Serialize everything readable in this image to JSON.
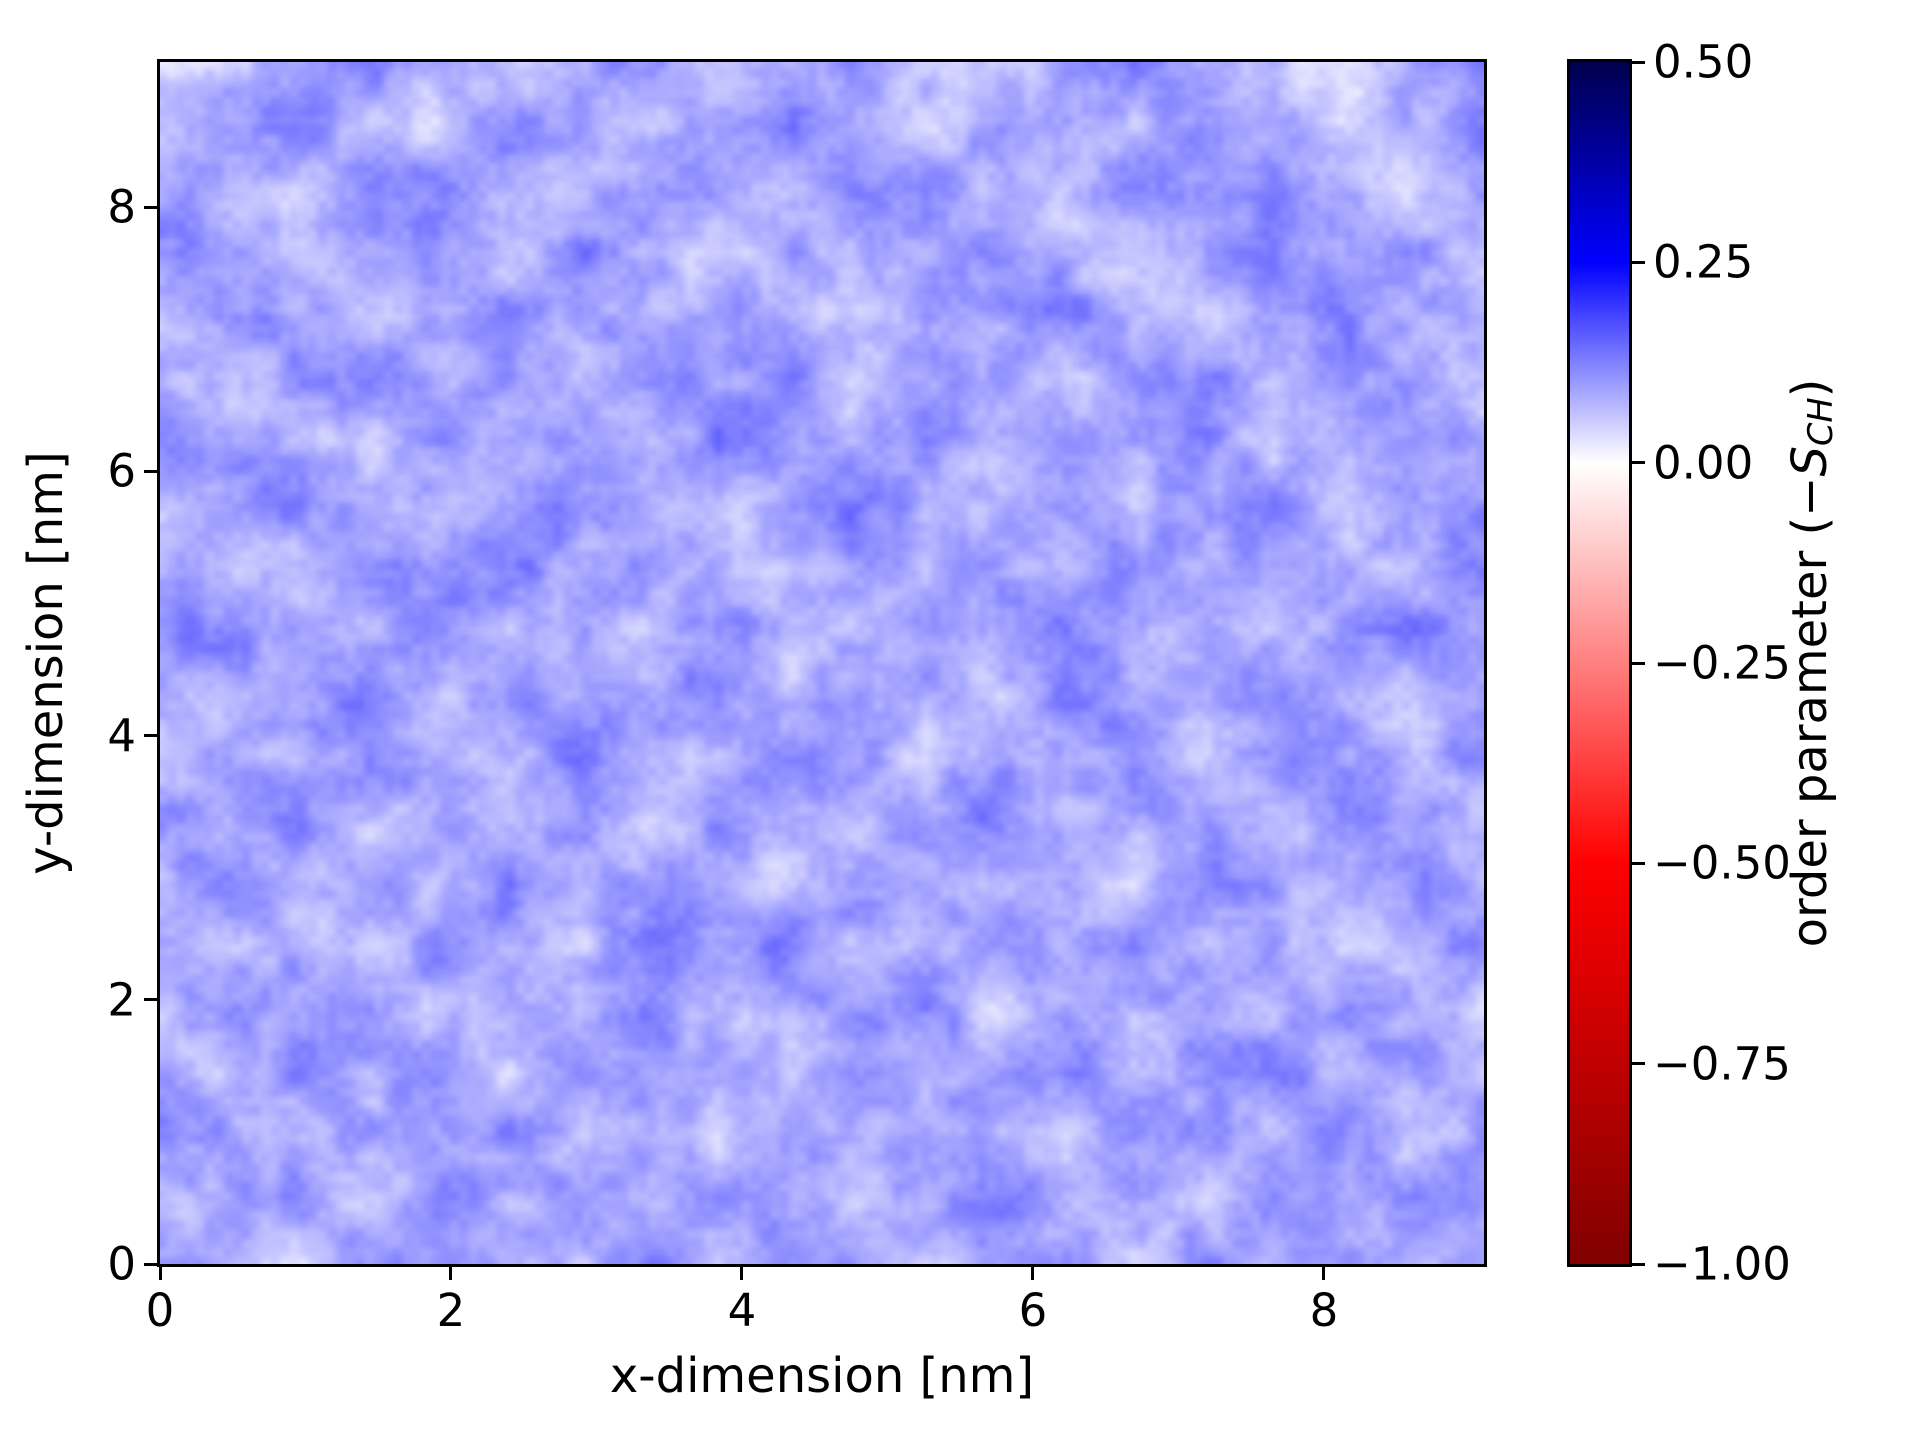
{
  "figure": {
    "background": "#ffffff",
    "title": ""
  },
  "chart_data": {
    "type": "heatmap",
    "title": "",
    "xlabel": "x-dimension [nm]",
    "ylabel": "y-dimension [nm]",
    "x_range": [
      0,
      9.1
    ],
    "y_range": [
      0,
      9.1
    ],
    "x_ticks": {
      "values": [
        0,
        2,
        4,
        6,
        8
      ],
      "labels": [
        "0",
        "2",
        "4",
        "6",
        "8"
      ]
    },
    "y_ticks": {
      "values": [
        0,
        2,
        4,
        6,
        8
      ],
      "labels": [
        "0",
        "2",
        "4",
        "6",
        "8"
      ]
    },
    "grid_lines": "off",
    "legend": "none",
    "colorbar": {
      "position": "right",
      "label_text": "order parameter (−",
      "label_var": "S",
      "label_sub": "CH",
      "label_suffix": ")",
      "vmin": -1.0,
      "vcenter": 0.0,
      "vmax": 0.5,
      "ticks": {
        "values": [
          0.5,
          0.25,
          0.0,
          -0.25,
          -0.5,
          -0.75,
          -1.0
        ],
        "labels": [
          "0.50",
          "0.25",
          "0.00",
          "−0.25",
          "−0.50",
          "−0.75",
          "−1.00"
        ]
      },
      "colormap_name": "seismic (reversed, white centered at 0.00)",
      "anchors": [
        {
          "value": 0.5,
          "rgb": [
            0,
            0,
            77
          ]
        },
        {
          "value": 0.25,
          "rgb": [
            0,
            0,
            255
          ]
        },
        {
          "value": 0.0,
          "rgb": [
            255,
            255,
            255
          ]
        },
        {
          "value": -0.5,
          "rgb": [
            255,
            0,
            0
          ]
        },
        {
          "value": -1.0,
          "rgb": [
            128,
            0,
            0
          ]
        }
      ],
      "css_gradient_stops": [
        {
          "pos_pct": 0.0,
          "color": "#00004d"
        },
        {
          "pos_pct": 16.667,
          "color": "#0000ff"
        },
        {
          "pos_pct": 33.333,
          "color": "#ffffff"
        },
        {
          "pos_pct": 66.667,
          "color": "#ff0000"
        },
        {
          "pos_pct": 100.0,
          "color": "#800000"
        }
      ]
    },
    "field": {
      "description": "Noisy, spatially-uniform order-parameter field; all values slightly positive (pale blue), no red regions. Grid below is a 20x20 estimate (row 0 = top, y=9.1 nm; col 0 = left, x=0 nm).",
      "values_min": 0.0,
      "values_max": 0.16,
      "values_mean": 0.085,
      "grid_rows": 20,
      "grid_cols": 20,
      "grid": [
        [
          0.032,
          0.061,
          0.095,
          0.118,
          0.076,
          0.052,
          0.089,
          0.107,
          0.063,
          0.084,
          0.112,
          0.071,
          0.048,
          0.093,
          0.126,
          0.082,
          0.058,
          0.034,
          0.096,
          0.108
        ],
        [
          0.058,
          0.102,
          0.125,
          0.067,
          0.043,
          0.111,
          0.086,
          0.054,
          0.097,
          0.122,
          0.078,
          0.045,
          0.104,
          0.088,
          0.061,
          0.115,
          0.092,
          0.049,
          0.071,
          0.113
        ],
        [
          0.097,
          0.073,
          0.046,
          0.109,
          0.128,
          0.085,
          0.062,
          0.118,
          0.094,
          0.051,
          0.107,
          0.131,
          0.069,
          0.056,
          0.112,
          0.087,
          0.103,
          0.075,
          0.042,
          0.089
        ],
        [
          0.114,
          0.088,
          0.064,
          0.092,
          0.107,
          0.049,
          0.126,
          0.081,
          0.038,
          0.102,
          0.073,
          0.095,
          0.119,
          0.066,
          0.044,
          0.098,
          0.127,
          0.083,
          0.109,
          0.057
        ],
        [
          0.069,
          0.123,
          0.091,
          0.055,
          0.082,
          0.117,
          0.098,
          0.072,
          0.105,
          0.066,
          0.043,
          0.111,
          0.087,
          0.129,
          0.076,
          0.052,
          0.094,
          0.116,
          0.068,
          0.101
        ],
        [
          0.086,
          0.052,
          0.108,
          0.131,
          0.077,
          0.094,
          0.063,
          0.121,
          0.089,
          0.114,
          0.058,
          0.079,
          0.102,
          0.047,
          0.093,
          0.125,
          0.071,
          0.106,
          0.084,
          0.062
        ],
        [
          0.121,
          0.095,
          0.074,
          0.048,
          0.112,
          0.068,
          0.103,
          0.057,
          0.128,
          0.092,
          0.076,
          0.119,
          0.054,
          0.097,
          0.083,
          0.109,
          0.045,
          0.088,
          0.117,
          0.073
        ],
        [
          0.067,
          0.109,
          0.126,
          0.083,
          0.059,
          0.096,
          0.115,
          0.078,
          0.046,
          0.104,
          0.132,
          0.087,
          0.071,
          0.113,
          0.062,
          0.098,
          0.124,
          0.053,
          0.091,
          0.107
        ],
        [
          0.092,
          0.064,
          0.047,
          0.118,
          0.101,
          0.129,
          0.072,
          0.108,
          0.085,
          0.056,
          0.094,
          0.068,
          0.116,
          0.049,
          0.127,
          0.081,
          0.103,
          0.077,
          0.058,
          0.122
        ],
        [
          0.108,
          0.131,
          0.086,
          0.069,
          0.124,
          0.053,
          0.097,
          0.042,
          0.113,
          0.078,
          0.061,
          0.105,
          0.091,
          0.123,
          0.066,
          0.112,
          0.057,
          0.095,
          0.128,
          0.074
        ],
        [
          0.083,
          0.057,
          0.102,
          0.125,
          0.071,
          0.118,
          0.064,
          0.096,
          0.133,
          0.052,
          0.109,
          0.088,
          0.046,
          0.115,
          0.098,
          0.063,
          0.121,
          0.079,
          0.055,
          0.094
        ],
        [
          0.049,
          0.096,
          0.073,
          0.117,
          0.088,
          0.062,
          0.135,
          0.081,
          0.058,
          0.123,
          0.097,
          0.044,
          0.112,
          0.076,
          0.128,
          0.054,
          0.092,
          0.108,
          0.067,
          0.119
        ],
        [
          0.116,
          0.081,
          0.128,
          0.059,
          0.104,
          0.077,
          0.093,
          0.048,
          0.111,
          0.086,
          0.064,
          0.102,
          0.137,
          0.068,
          0.083,
          0.107,
          0.051,
          0.125,
          0.096,
          0.061
        ],
        [
          0.078,
          0.124,
          0.055,
          0.098,
          0.067,
          0.132,
          0.086,
          0.109,
          0.073,
          0.041,
          0.118,
          0.094,
          0.057,
          0.103,
          0.046,
          0.121,
          0.089,
          0.065,
          0.113,
          0.085
        ],
        [
          0.105,
          0.063,
          0.091,
          0.043,
          0.126,
          0.084,
          0.058,
          0.117,
          0.095,
          0.129,
          0.072,
          0.056,
          0.108,
          0.082,
          0.119,
          0.065,
          0.098,
          0.044,
          0.076,
          0.127
        ],
        [
          0.061,
          0.114,
          0.087,
          0.122,
          0.053,
          0.099,
          0.071,
          0.136,
          0.062,
          0.088,
          0.104,
          0.123,
          0.047,
          0.095,
          0.069,
          0.111,
          0.058,
          0.102,
          0.083,
          0.049
        ],
        [
          0.093,
          0.048,
          0.119,
          0.075,
          0.108,
          0.046,
          0.124,
          0.083,
          0.101,
          0.054,
          0.116,
          0.079,
          0.092,
          0.128,
          0.063,
          0.087,
          0.133,
          0.071,
          0.106,
          0.068
        ],
        [
          0.127,
          0.102,
          0.066,
          0.094,
          0.081,
          0.113,
          0.059,
          0.097,
          0.045,
          0.121,
          0.068,
          0.106,
          0.084,
          0.052,
          0.114,
          0.096,
          0.073,
          0.118,
          0.051,
          0.089
        ],
        [
          0.056,
          0.085,
          0.111,
          0.049,
          0.123,
          0.078,
          0.104,
          0.069,
          0.115,
          0.091,
          0.053,
          0.097,
          0.126,
          0.074,
          0.088,
          0.042,
          0.107,
          0.082,
          0.124,
          0.097
        ],
        [
          0.102,
          0.068,
          0.044,
          0.117,
          0.089,
          0.095,
          0.066,
          0.128,
          0.057,
          0.112,
          0.086,
          0.062,
          0.099,
          0.108,
          0.051,
          0.122,
          0.077,
          0.093,
          0.064,
          0.111
        ]
      ]
    }
  }
}
